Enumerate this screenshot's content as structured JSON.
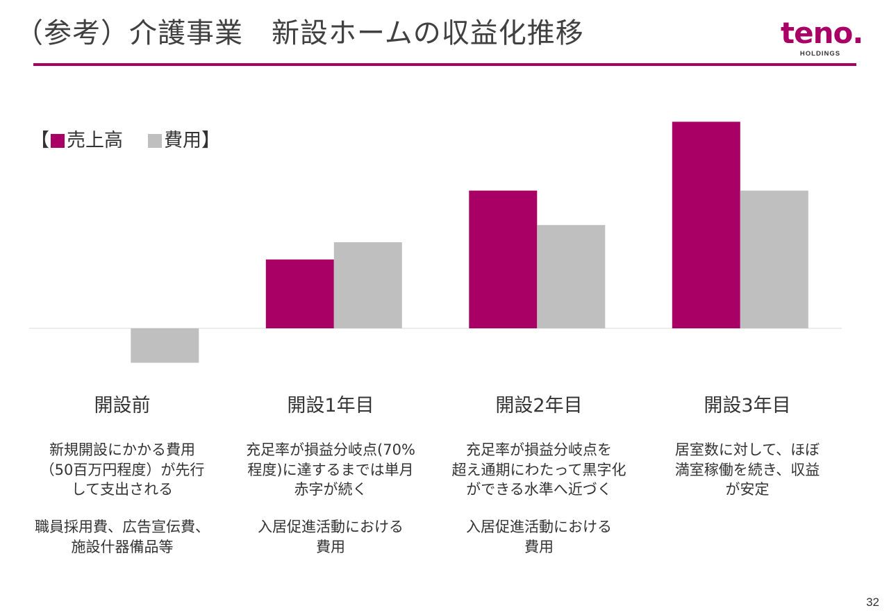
{
  "header": {
    "title": "（参考）介護事業　新設ホームの収益化推移",
    "logo_text": "teno.",
    "logo_sub": "HOLDINGS"
  },
  "colors": {
    "revenue": "#a90066",
    "cost": "#bfbfbf",
    "accent": "#a90066"
  },
  "legend": {
    "open": "【",
    "revenue_label": "売上高",
    "cost_label": "費用】"
  },
  "chart_data": {
    "type": "bar",
    "categories": [
      "開設前",
      "開設1年目",
      "開設2年目",
      "開設3年目"
    ],
    "series": [
      {
        "name": "売上高",
        "values": [
          0,
          40,
          80,
          120
        ]
      },
      {
        "name": "費用",
        "values": [
          -20,
          50,
          60,
          80
        ]
      }
    ],
    "ylim": [
      -28,
      124
    ],
    "grid": false,
    "legend_position": "top-left"
  },
  "columns": [
    {
      "title": "開設前",
      "desc": "新規開設にかかる費用\n（50百万円程度）が先行\nして支出される",
      "note": "職員採用費、広告宣伝費、\n施設什器備品等"
    },
    {
      "title": "開設1年目",
      "desc": "充足率が損益分岐点(70%\n程度)に達するまでは単月\n赤字が続く",
      "note": "入居促進活動における\n費用"
    },
    {
      "title": "開設2年目",
      "desc": "充足率が損益分岐点を\n超え通期にわたって黒字化\nができる水準へ近づく",
      "note": "入居促進活動における\n費用"
    },
    {
      "title": "開設3年目",
      "desc": "居室数に対して、ほぼ\n満室稼働を続き、収益\nが安定",
      "note": ""
    }
  ],
  "page_number": "32"
}
